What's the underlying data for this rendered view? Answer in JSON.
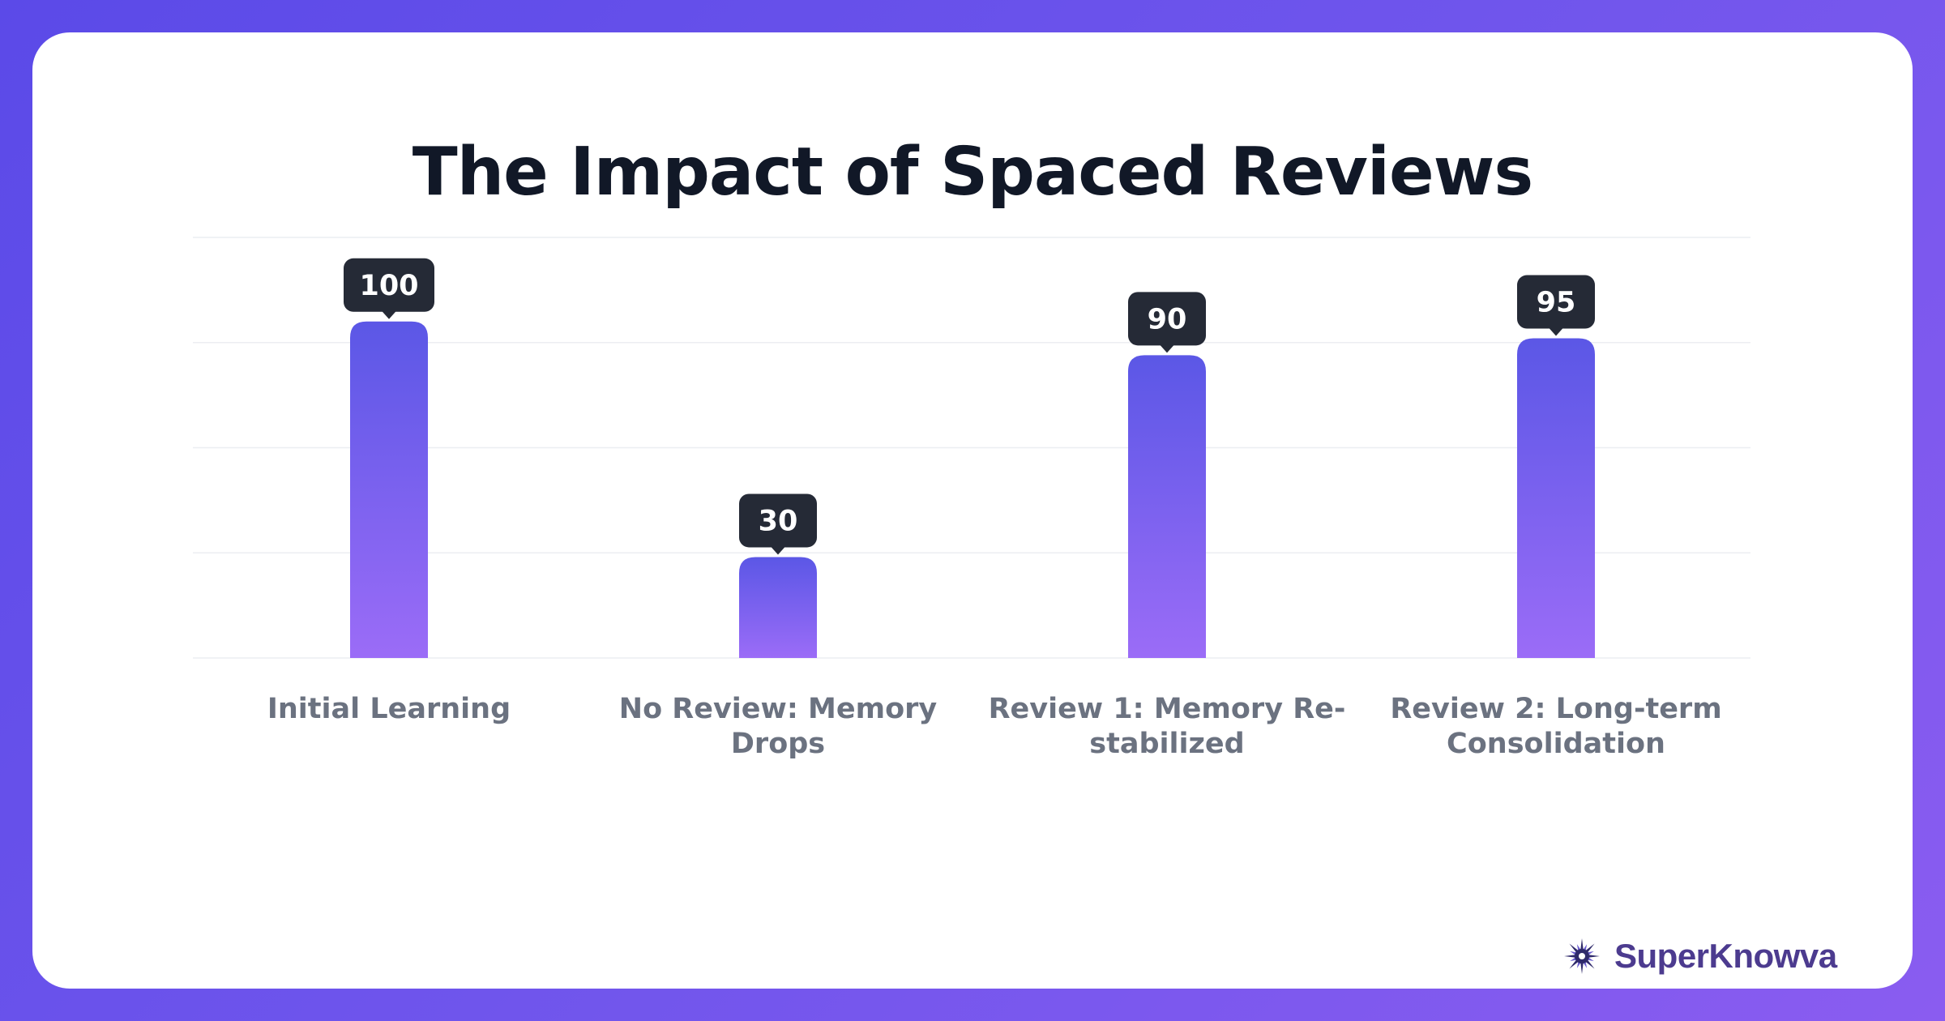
{
  "chart_data": {
    "type": "bar",
    "title": "The Impact of Spaced Reviews",
    "categories": [
      "Initial Learning",
      "No Review: Memory Drops",
      "Review 1: Memory Re-stabilized",
      "Review 2: Long-term Consolidation"
    ],
    "category_lines": [
      [
        "Initial Learning"
      ],
      [
        "No Review: Memory",
        "Drops"
      ],
      [
        "Review 1: Memory Re-",
        "stabilized"
      ],
      [
        "Review 2: Long-term",
        "Consolidation"
      ]
    ],
    "values": [
      100,
      30,
      90,
      95
    ],
    "ylim": [
      0,
      125
    ],
    "grid": true,
    "xlabel": "",
    "ylabel": "",
    "colors": {
      "bar_top": "#5b57e6",
      "bar_bottom": "#9b6cf7",
      "label_bg": "#252a36",
      "gridline": "#eceef2"
    }
  },
  "brand": {
    "name": "SuperKnowva",
    "icon": "starburst-logo-icon"
  }
}
